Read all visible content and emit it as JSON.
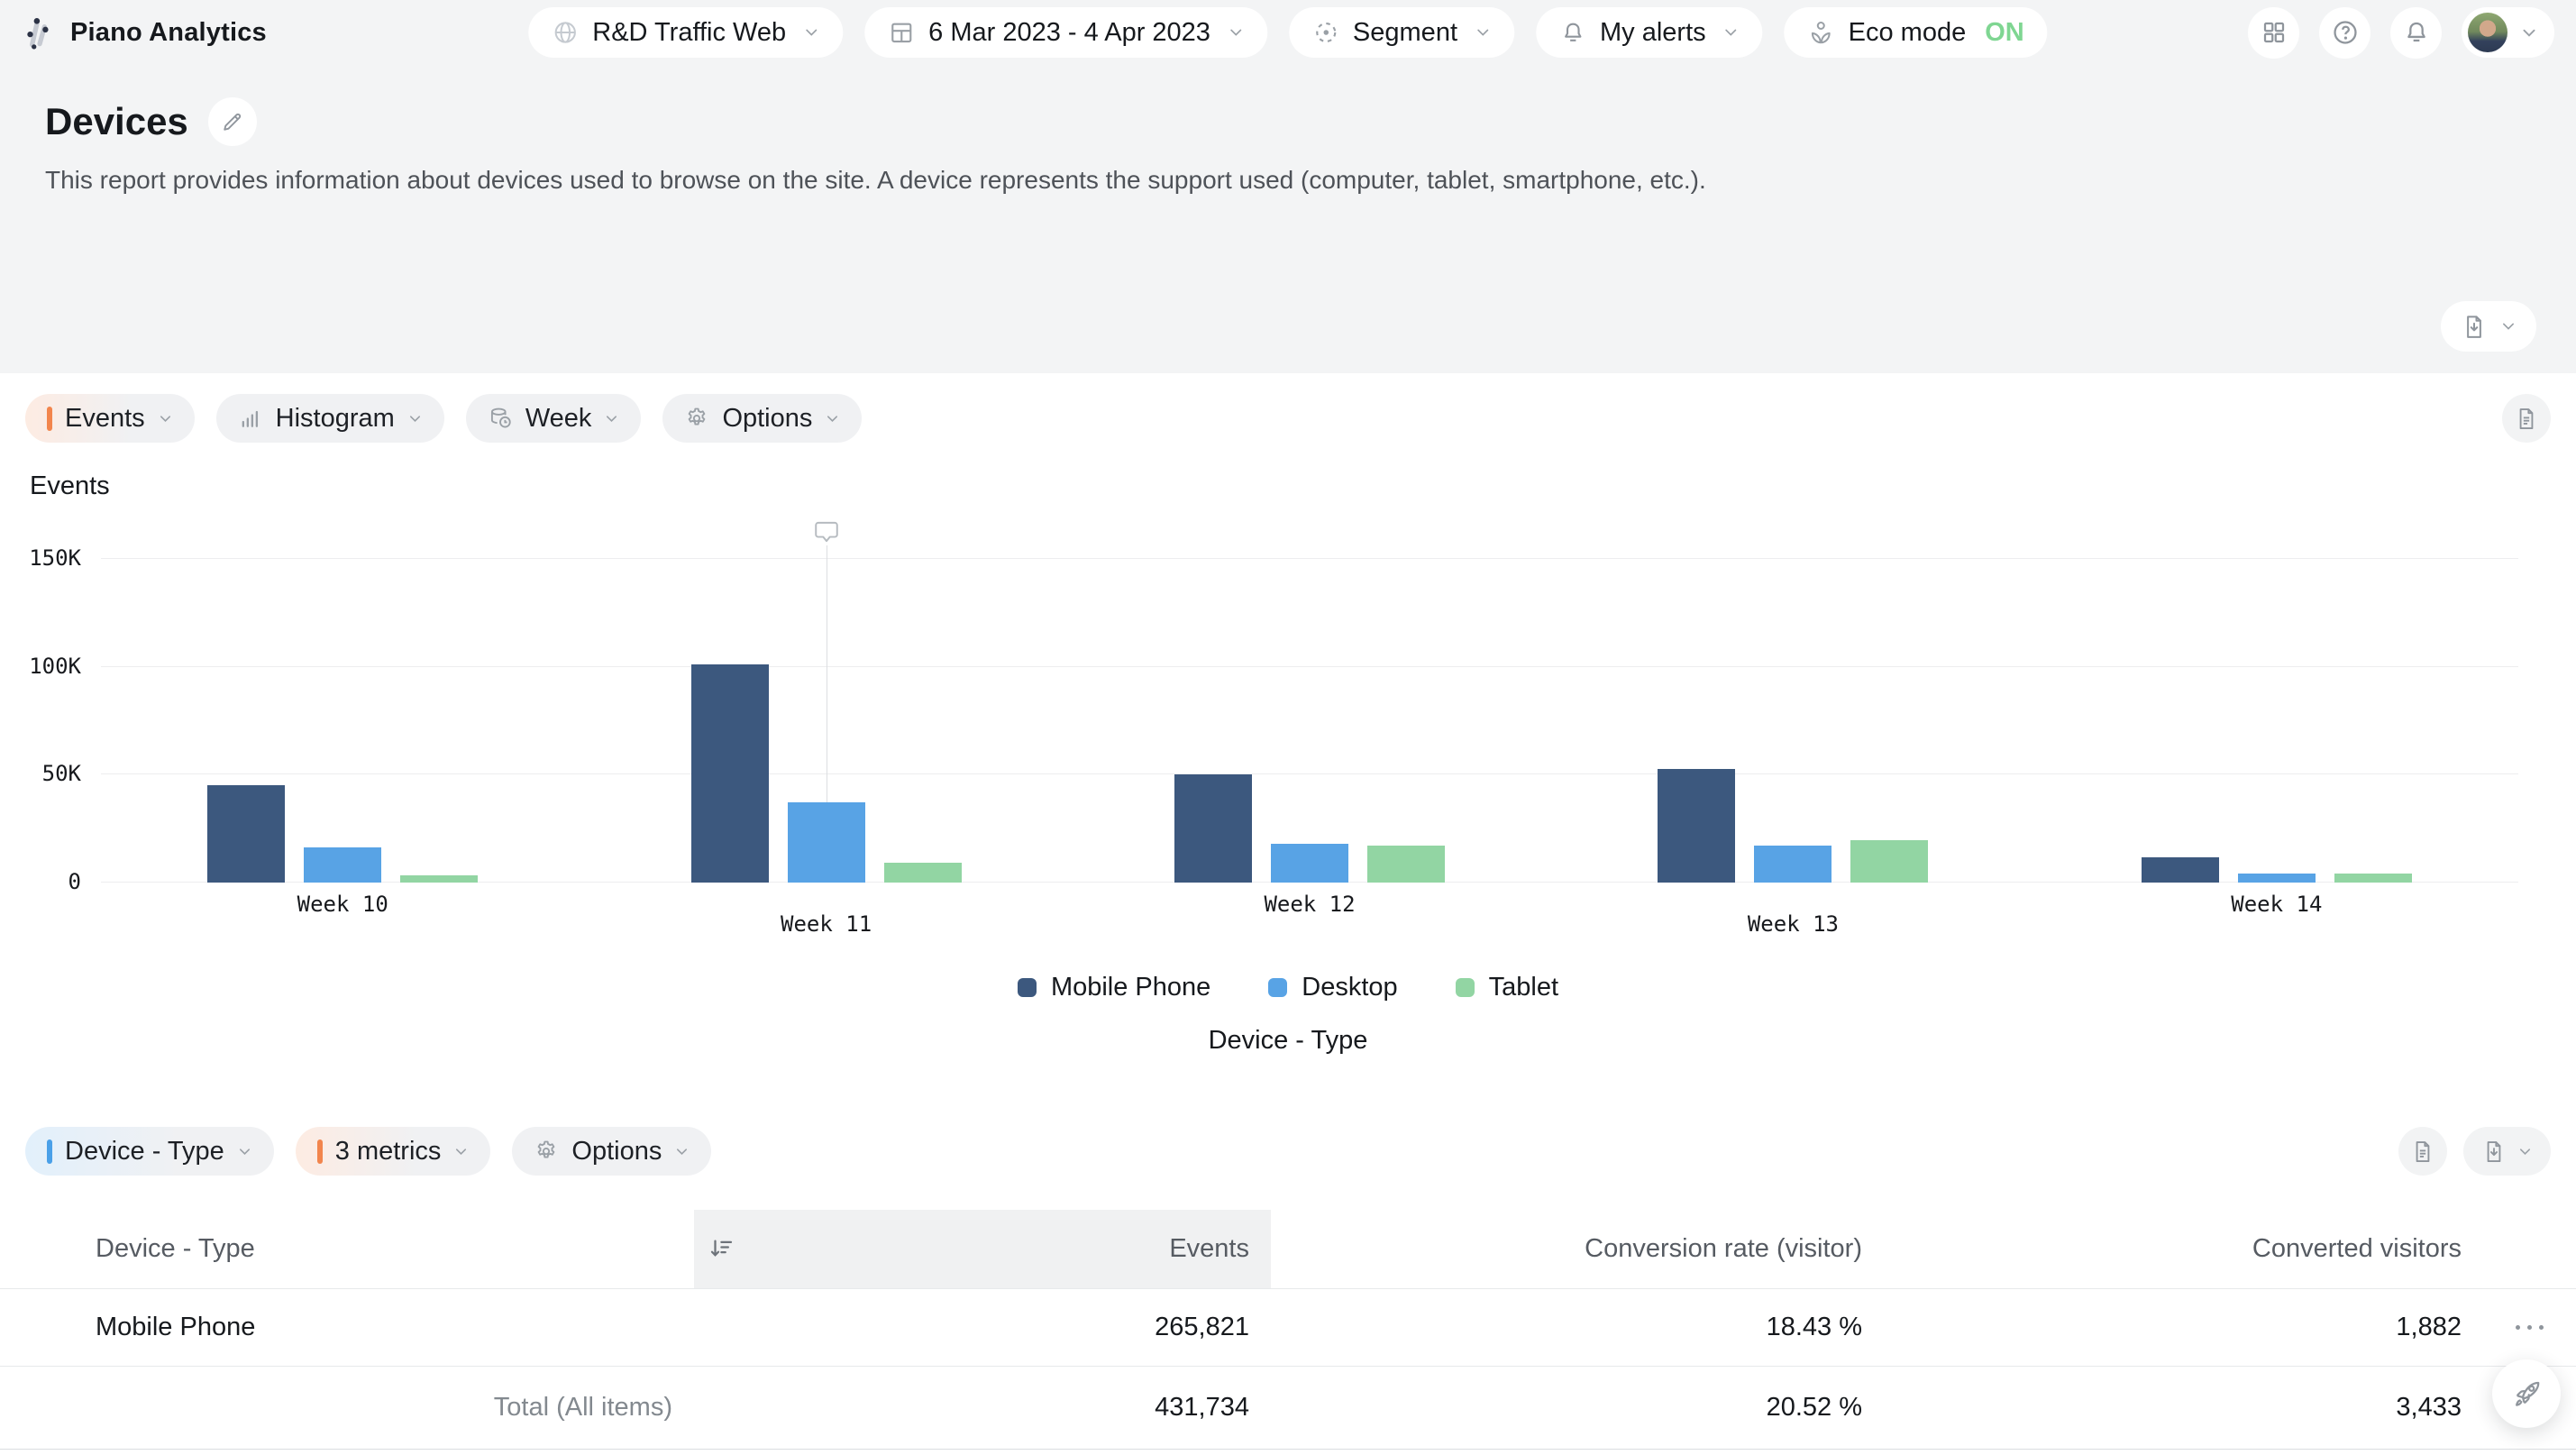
{
  "topbar": {
    "brand": "Piano Analytics",
    "site_picker": {
      "label": "R&D Traffic Web",
      "icon": "globe"
    },
    "date_range": {
      "label": "6 Mar 2023 - 4 Apr 2023",
      "icon": "calendar"
    },
    "segment": {
      "label": "Segment",
      "icon": "segment-target"
    },
    "alerts": {
      "label": "My alerts",
      "icon": "bell"
    },
    "eco_mode": {
      "label": "Eco mode",
      "state": "ON",
      "icon": "sprout"
    }
  },
  "header": {
    "title": "Devices",
    "description": "This report provides information about devices used to browse on the site. A device represents the support used (computer, tablet, smartphone, etc.)."
  },
  "chart_toolbar": {
    "metric": "Events",
    "chart_type": "Histogram",
    "period": "Week",
    "options": "Options"
  },
  "chart_data": {
    "type": "bar",
    "title": "Events",
    "categories": [
      "Week 10",
      "Week 11",
      "Week 12",
      "Week 13",
      "Week 14"
    ],
    "series": [
      {
        "name": "Mobile Phone",
        "color": "#3c587e",
        "values": [
          45000,
          101000,
          50000,
          52500,
          11500
        ]
      },
      {
        "name": "Desktop",
        "color": "#58a3e5",
        "values": [
          16500,
          37000,
          18000,
          17000,
          4000
        ]
      },
      {
        "name": "Tablet",
        "color": "#92d5a3",
        "values": [
          3500,
          9000,
          17000,
          19500,
          4000
        ]
      }
    ],
    "ylabel": "Events",
    "xlabel": "Device - Type",
    "ylim": [
      0,
      150000
    ],
    "yticks": [
      0,
      50000,
      100000,
      150000
    ],
    "ytick_labels": [
      "0",
      "50K",
      "100K",
      "150K"
    ],
    "grid": true,
    "legend_position": "bottom",
    "annotation": {
      "category_index": 1,
      "type": "comment-marker"
    }
  },
  "table_toolbar": {
    "dimension": "Device - Type",
    "metrics": "3 metrics",
    "options": "Options"
  },
  "table": {
    "columns": [
      "Device - Type",
      "Events",
      "Conversion rate (visitor)",
      "Converted visitors"
    ],
    "sorted_column": "Events",
    "rows": [
      {
        "label": "Mobile Phone",
        "events": "265,821",
        "conversion": "18.43 %",
        "converted": "1,882"
      }
    ],
    "total": {
      "label": "Total (All items)",
      "events": "431,734",
      "conversion": "20.52 %",
      "converted": "3,433"
    }
  },
  "colors": {
    "accent_orange": "#f2854d",
    "accent_blue": "#4aa0e8",
    "eco_on_green": "#7fd692",
    "series_mobile": "#3c587e",
    "series_desktop": "#58a3e5",
    "series_tablet": "#92d5a3",
    "page_background": "#f3f4f5"
  }
}
